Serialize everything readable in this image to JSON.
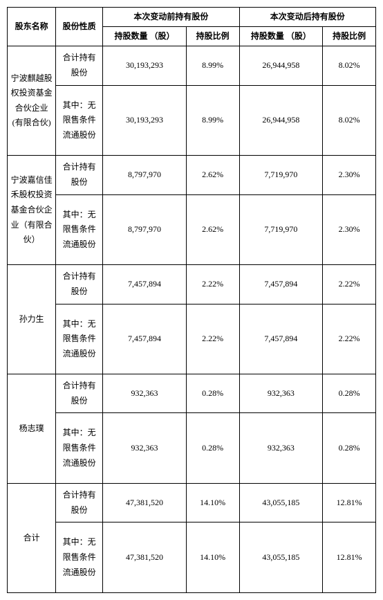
{
  "headers": {
    "shareholder": "股东名称",
    "shareType": "股份性质",
    "beforeGroup": "本次变动前持有股份",
    "afterGroup": "本次变动后持有股份",
    "qty": "持股数量 （股）",
    "ratio": "持股比例"
  },
  "typeLabels": {
    "total": "合计持有股份",
    "unrestricted": "其中：无限售条件流通股份"
  },
  "rows": [
    {
      "name": "宁波麒越股权投资基金合伙企业(有限合伙)",
      "total": {
        "beforeQty": "30,193,293",
        "beforeRatio": "8.99%",
        "afterQty": "26,944,958",
        "afterRatio": "8.02%"
      },
      "unrestricted": {
        "beforeQty": "30,193,293",
        "beforeRatio": "8.99%",
        "afterQty": "26,944,958",
        "afterRatio": "8.02%"
      }
    },
    {
      "name": "宁波嘉信佳禾股权投资基金合伙企业（有限合伙）",
      "total": {
        "beforeQty": "8,797,970",
        "beforeRatio": "2.62%",
        "afterQty": "7,719,970",
        "afterRatio": "2.30%"
      },
      "unrestricted": {
        "beforeQty": "8,797,970",
        "beforeRatio": "2.62%",
        "afterQty": "7,719,970",
        "afterRatio": "2.30%"
      }
    },
    {
      "name": "孙力生",
      "total": {
        "beforeQty": "7,457,894",
        "beforeRatio": "2.22%",
        "afterQty": "7,457,894",
        "afterRatio": "2.22%"
      },
      "unrestricted": {
        "beforeQty": "7,457,894",
        "beforeRatio": "2.22%",
        "afterQty": "7,457,894",
        "afterRatio": "2.22%"
      }
    },
    {
      "name": "杨志璞",
      "total": {
        "beforeQty": "932,363",
        "beforeRatio": "0.28%",
        "afterQty": "932,363",
        "afterRatio": "0.28%"
      },
      "unrestricted": {
        "beforeQty": "932,363",
        "beforeRatio": "0.28%",
        "afterQty": "932,363",
        "afterRatio": "0.28%"
      }
    },
    {
      "name": "合计",
      "total": {
        "beforeQty": "47,381,520",
        "beforeRatio": "14.10%",
        "afterQty": "43,055,185",
        "afterRatio": "12.81%"
      },
      "unrestricted": {
        "beforeQty": "47,381,520",
        "beforeRatio": "14.10%",
        "afterQty": "43,055,185",
        "afterRatio": "12.81%"
      }
    }
  ]
}
